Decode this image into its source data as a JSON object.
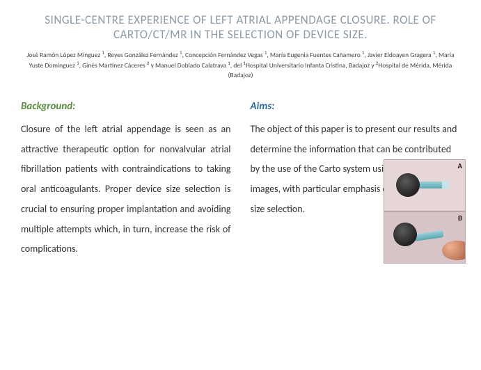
{
  "title": "SINGLE-CENTRE EXPERIENCE OF LEFT ATRIAL APPENDAGE CLOSURE. ROLE OF CARTO/CT/MR IN THE SELECTION OF DEVICE SIZE.",
  "authors_html": "José Ramón López Mínguez <sup>1</sup>, Reyes González Fernández <sup>1</sup>, Concepción Fernández Vegas <sup>1</sup>, María Eugenia Fuentes Cañamero <sup>1</sup>, Javier Eldoayen Gragera <sup>1</sup>, María Yuste Domínguez <sup>1</sup>, Ginés Martínez Cáceres <sup>2</sup> y Manuel Doblado Calatrava <sup>1</sup>, del <sup>1</sup>Hospital Universitario Infanta Cristina, Badajoz y <sup>2</sup>Hospital de Mérida, Mérida (Badajoz)",
  "sections": {
    "background": {
      "heading": "Background:",
      "text": "Closure of the left atrial appendage is seen as an attractive therapeutic option for nonvalvular atrial fibrillation patients with contraindications to taking oral anticoagulants. Proper device size selection is crucial to ensuring proper implantation and avoiding multiple attempts which, in turn, increase the risk of complications."
    },
    "aims": {
      "heading": "Aims:",
      "text": "The object of this paper is to present our results and determine the information that can be contributed by the use of the Carto system using MR or CT images, with particular emphasis on the aspect of size selection."
    }
  },
  "images": {
    "a_label": "A",
    "b_label": "B"
  },
  "colors": {
    "title": "#8c9aa5",
    "heading_green": "#5a8b3e",
    "heading_blue": "#2d6aa3",
    "body_text": "#333333",
    "background": "#ffffff"
  },
  "typography": {
    "title_fontsize": 17,
    "authors_fontsize": 9.5,
    "heading_fontsize": 15,
    "body_fontsize": 14,
    "body_lineheight": 2.05
  }
}
